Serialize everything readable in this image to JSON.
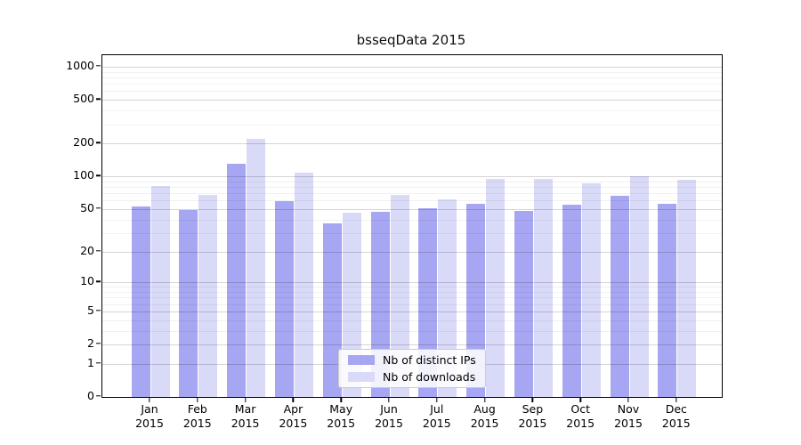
{
  "title": "bsseqData 2015",
  "colors": {
    "ips_bar": "#a6a6f2",
    "downloads_bar": "#d9d9f8",
    "axis": "#000000",
    "background": "#ffffff",
    "legend_border": "#cccccc"
  },
  "legend": {
    "items": [
      {
        "label": "Nb of distinct IPs",
        "color": "#a6a6f2"
      },
      {
        "label": "Nb of downloads",
        "color": "#d9d9f8"
      }
    ]
  },
  "y_axis": {
    "tick_labels": [
      "0",
      "1",
      "2",
      "5",
      "10",
      "20",
      "50",
      "100",
      "200",
      "500",
      "1000"
    ]
  },
  "x_axis": {
    "tick_label_line2": "2015",
    "months": [
      "Jan",
      "Feb",
      "Mar",
      "Apr",
      "May",
      "Jun",
      "Jul",
      "Aug",
      "Sep",
      "Oct",
      "Nov",
      "Dec"
    ]
  },
  "chart_data": {
    "type": "bar",
    "title": "bsseqData 2015",
    "categories": [
      "Jan 2015",
      "Feb 2015",
      "Mar 2015",
      "Apr 2015",
      "May 2015",
      "Jun 2015",
      "Jul 2015",
      "Aug 2015",
      "Sep 2015",
      "Oct 2015",
      "Nov 2015",
      "Dec 2015"
    ],
    "series": [
      {
        "name": "Nb of distinct IPs",
        "color": "#a6a6f2",
        "values": [
          53,
          49,
          130,
          59,
          37,
          47,
          51,
          56,
          48,
          55,
          66,
          56
        ]
      },
      {
        "name": "Nb of downloads",
        "color": "#d9d9f8",
        "values": [
          82,
          67,
          220,
          108,
          46,
          68,
          62,
          95,
          95,
          86,
          100,
          93
        ]
      }
    ],
    "xlabel": "",
    "ylabel": "",
    "y_scale": "log10(1 + y)",
    "ylim": [
      0,
      1000
    ],
    "y_major_ticks": [
      0,
      1,
      2,
      5,
      10,
      20,
      50,
      100,
      200,
      500,
      1000
    ],
    "y_minor_ticks": [
      3,
      4,
      6,
      7,
      8,
      9,
      30,
      40,
      60,
      70,
      80,
      90,
      300,
      400,
      600,
      700,
      800,
      900
    ],
    "grid": true,
    "legend_position": "inside lower center"
  }
}
